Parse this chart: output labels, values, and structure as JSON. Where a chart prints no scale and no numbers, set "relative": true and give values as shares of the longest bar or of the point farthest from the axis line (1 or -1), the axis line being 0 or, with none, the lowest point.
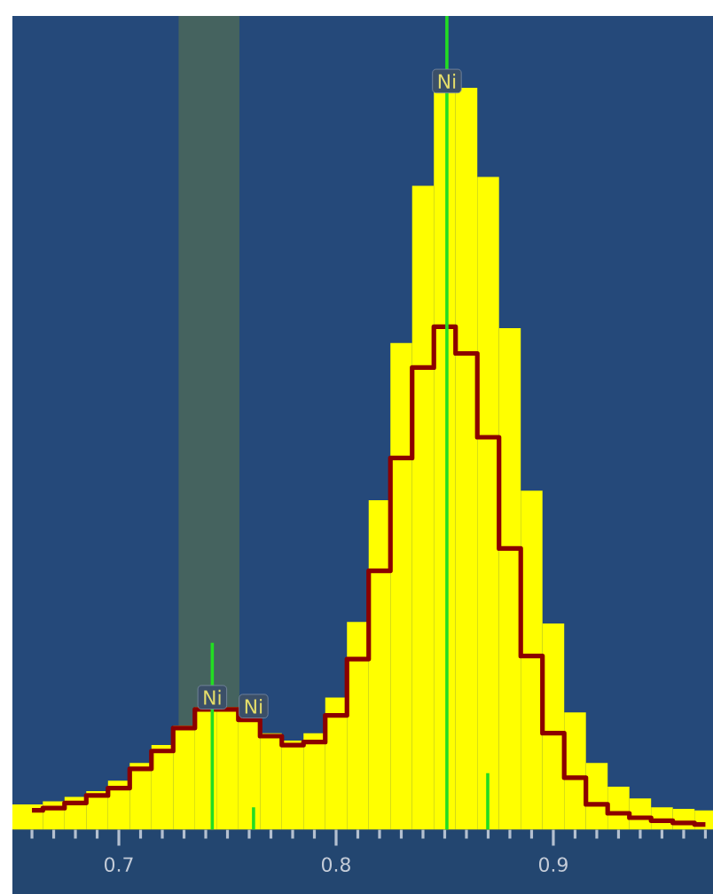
{
  "chart_data": {
    "type": "histogram",
    "relative": true,
    "bins": [
      0.651,
      0.665,
      0.675,
      0.685,
      0.695,
      0.705,
      0.715,
      0.725,
      0.735,
      0.745,
      0.755,
      0.765,
      0.775,
      0.785,
      0.795,
      0.805,
      0.815,
      0.825,
      0.835,
      0.845,
      0.855,
      0.865,
      0.875,
      0.885,
      0.895,
      0.905,
      0.915,
      0.925,
      0.935,
      0.945,
      0.955,
      0.965,
      0.9735
    ],
    "series": [
      {
        "color": "#ffff00",
        "values": [
          0.034,
          0.038,
          0.044,
          0.052,
          0.066,
          0.09,
          0.114,
          0.14,
          0.165,
          0.165,
          0.15,
          0.13,
          0.12,
          0.13,
          0.178,
          0.28,
          0.444,
          0.656,
          0.868,
          1.0,
          1.0,
          0.88,
          0.676,
          0.457,
          0.278,
          0.158,
          0.09,
          0.058,
          0.042,
          0.03,
          0.028,
          0.026
        ]
      },
      {
        "type": "step",
        "color": "#8b0000",
        "x": [
          0.66,
          0.67,
          0.68,
          0.69,
          0.7,
          0.71,
          0.72,
          0.73,
          0.74,
          0.75,
          0.76,
          0.77,
          0.78,
          0.79,
          0.8,
          0.81,
          0.82,
          0.83,
          0.84,
          0.85,
          0.86,
          0.87,
          0.88,
          0.89,
          0.9,
          0.91,
          0.92,
          0.93,
          0.94,
          0.95,
          0.96,
          0.97
        ],
        "values": [
          0.026,
          0.029,
          0.036,
          0.046,
          0.056,
          0.082,
          0.106,
          0.137,
          0.162,
          0.162,
          0.148,
          0.126,
          0.114,
          0.118,
          0.154,
          0.23,
          0.349,
          0.501,
          0.623,
          0.678,
          0.642,
          0.529,
          0.379,
          0.234,
          0.13,
          0.07,
          0.034,
          0.022,
          0.016,
          0.012,
          0.009,
          0.007
        ]
      },
      {
        "type": "bar",
        "color": "#22dd22",
        "x": [
          0.743,
          0.762,
          0.8698
        ],
        "values": [
          0.252,
          0.03,
          0.076
        ]
      }
    ],
    "xlim": [
      0.651,
      0.9735
    ],
    "xticks": [
      {
        "value": 0.66,
        "label": null
      },
      {
        "value": 0.67,
        "label": null
      },
      {
        "value": 0.68,
        "label": null
      },
      {
        "value": 0.69,
        "label": null
      },
      0.7,
      {
        "value": 0.71,
        "label": null
      },
      {
        "value": 0.72,
        "label": null
      },
      {
        "value": 0.73,
        "label": null
      },
      {
        "value": 0.74,
        "label": null
      },
      {
        "value": 0.75,
        "label": null
      },
      {
        "value": 0.76,
        "label": null
      },
      {
        "value": 0.77,
        "label": null
      },
      {
        "value": 0.78,
        "label": null
      },
      {
        "value": 0.79,
        "label": null
      },
      0.8,
      {
        "value": 0.81,
        "label": null
      },
      {
        "value": 0.82,
        "label": null
      },
      {
        "value": 0.83,
        "label": null
      },
      {
        "value": 0.84,
        "label": null
      },
      {
        "value": 0.85,
        "label": null
      },
      {
        "value": 0.86,
        "label": null
      },
      {
        "value": 0.87,
        "label": null
      },
      {
        "value": 0.88,
        "label": null
      },
      {
        "value": 0.89,
        "label": null
      },
      0.9,
      {
        "value": 0.91,
        "label": null
      },
      {
        "value": 0.92,
        "label": null
      },
      {
        "value": 0.93,
        "label": null
      },
      {
        "value": 0.94,
        "label": null
      },
      {
        "value": 0.95,
        "label": null
      },
      {
        "value": 0.96,
        "label": null
      },
      {
        "value": 0.97,
        "label": null
      }
    ],
    "ref_lines": [
      {
        "axis": "x",
        "value": 0.851,
        "label": "Ni",
        "color": "#22dd22"
      }
    ],
    "bands": [
      {
        "axis": "x",
        "from": 0.7275,
        "to": 0.7555,
        "color": "#45635f"
      }
    ],
    "annotations": [
      {
        "text": "Ni",
        "x": 0.743,
        "y": 0.162
      },
      {
        "text": "Ni",
        "x": 0.762,
        "y": 0.15
      }
    ],
    "tick_labels": "x"
  }
}
